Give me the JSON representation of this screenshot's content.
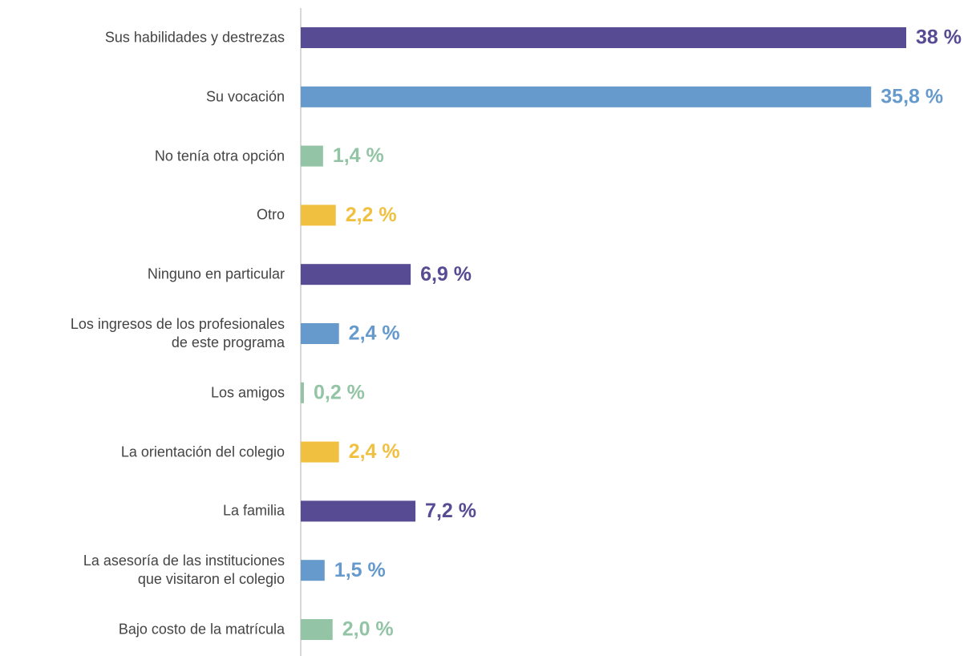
{
  "chart_data": {
    "type": "bar",
    "orientation": "horizontal",
    "categories": [
      "Sus habilidades y destrezas",
      "Su vocación",
      "No tenía otra opción",
      "Otro",
      "Ninguno en particular",
      "Los ingresos de los profesionales\nde este programa",
      "Los amigos",
      "La orientación del colegio",
      "La familia",
      "La asesoría de las instituciones\nque visitaron el colegio",
      "Bajo costo de la matrícula"
    ],
    "values": [
      38,
      35.8,
      1.4,
      2.2,
      6.9,
      2.4,
      0.2,
      2.4,
      7.2,
      1.5,
      2.0
    ],
    "value_labels": [
      "38 %",
      "35,8 %",
      "1,4 %",
      "2,2 %",
      "6,9 %",
      "2,4 %",
      "0,2 %",
      "2,4 %",
      "7,2 %",
      "1,5 %",
      "2,0 %"
    ],
    "colors": [
      "#574b93",
      "#6699cc",
      "#93c4a5",
      "#f0c040",
      "#574b93",
      "#6699cc",
      "#93c4a5",
      "#f0c040",
      "#574b93",
      "#6699cc",
      "#93c4a5"
    ]
  }
}
